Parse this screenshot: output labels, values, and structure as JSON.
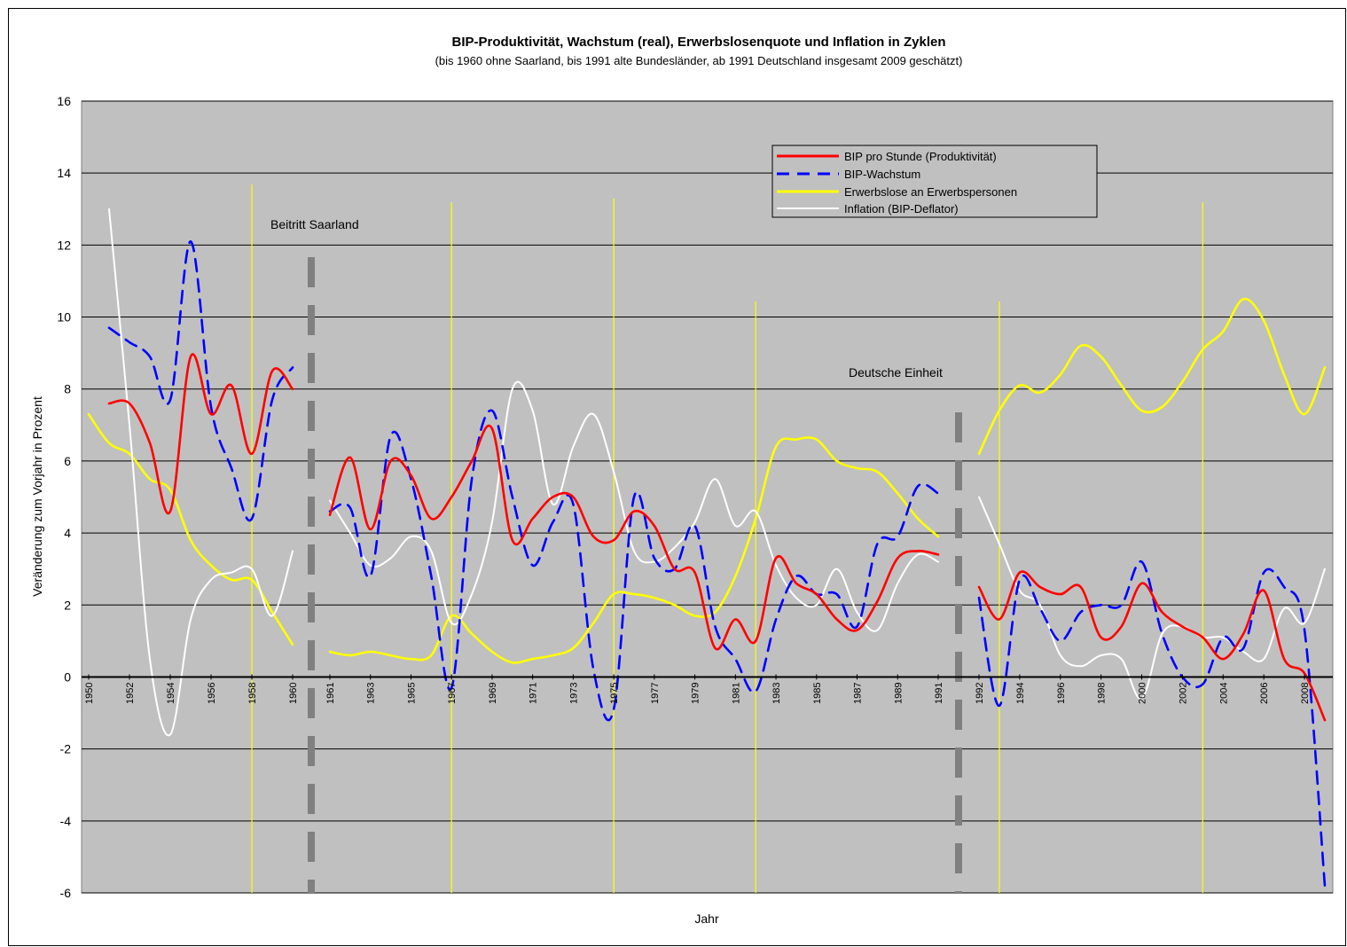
{
  "chart_data": {
    "type": "line",
    "title": "BIP-Produktivität, Wachstum (real), Erwerbslosenquote und Inflation in Zyklen",
    "subtitle": "(bis 1960 ohne Saarland, bis 1991 alte Bundesländer, ab 1991 Deutschland insgesamt 2009 geschätzt)",
    "xlabel": "Jahr",
    "ylabel": "Veränderung zum Vorjahr in Prozent",
    "ylim": [
      -6,
      16
    ],
    "y_ticks": [
      "-6",
      "-4",
      "-2",
      "0",
      "2",
      "4",
      "6",
      "8",
      "10",
      "12",
      "14",
      "16"
    ],
    "x_tick_labels": [
      "1950",
      "1952",
      "1954",
      "1956",
      "1958",
      "1960",
      "1961",
      "1963",
      "1965",
      "1967",
      "1969",
      "1971",
      "1973",
      "1975",
      "1977",
      "1979",
      "1981",
      "1983",
      "1985",
      "1987",
      "1989",
      "1991",
      "1992",
      "1994",
      "1996",
      "1998",
      "2000",
      "2002",
      "2004",
      "2006",
      "2008"
    ],
    "grid": "horizontal",
    "legend_position": "top-right",
    "annotations": [
      "Beitritt Saarland",
      "Deutsche Einheit"
    ],
    "colors": {
      "plot_background": "#c0c0c0",
      "productivity": "#ff0000",
      "growth": "#0000ff",
      "unemployment": "#ffff00",
      "inflation": "#ffffff",
      "cycle_lines": "#ffff00",
      "break_lines": "#808080"
    },
    "segments": [
      {
        "name": "1950-1960",
        "start_year": 1950,
        "end_year": 1960
      },
      {
        "name": "1961-1991",
        "start_year": 1961,
        "end_year": 1991
      },
      {
        "name": "1992-2009",
        "start_year": 1992,
        "end_year": 2009
      }
    ],
    "cycle_marks": [
      1958,
      1967,
      1975,
      1982,
      1993,
      2003
    ],
    "break_marks": [
      1960.5,
      1991.5
    ],
    "series": [
      {
        "name": "BIP pro Stunde (Produktivität)",
        "style": "solid",
        "points": [
          [
            1951,
            7.6
          ],
          [
            1952,
            7.6
          ],
          [
            1953,
            6.5
          ],
          [
            1954,
            4.6
          ],
          [
            1955,
            8.9
          ],
          [
            1956,
            7.3
          ],
          [
            1957,
            8.1
          ],
          [
            1958,
            6.2
          ],
          [
            1959,
            8.5
          ],
          [
            1960,
            8.0
          ],
          [
            1961,
            4.5
          ],
          [
            1962,
            6.1
          ],
          [
            1963,
            4.1
          ],
          [
            1964,
            6.0
          ],
          [
            1965,
            5.6
          ],
          [
            1966,
            4.4
          ],
          [
            1967,
            5.0
          ],
          [
            1968,
            6.0
          ],
          [
            1969,
            6.9
          ],
          [
            1970,
            3.8
          ],
          [
            1971,
            4.4
          ],
          [
            1972,
            5.0
          ],
          [
            1973,
            5.0
          ],
          [
            1974,
            3.9
          ],
          [
            1975,
            3.8
          ],
          [
            1976,
            4.6
          ],
          [
            1977,
            4.2
          ],
          [
            1978,
            3.0
          ],
          [
            1979,
            2.9
          ],
          [
            1980,
            0.8
          ],
          [
            1981,
            1.6
          ],
          [
            1982,
            1.0
          ],
          [
            1983,
            3.3
          ],
          [
            1984,
            2.6
          ],
          [
            1985,
            2.3
          ],
          [
            1986,
            1.6
          ],
          [
            1987,
            1.3
          ],
          [
            1988,
            2.1
          ],
          [
            1989,
            3.3
          ],
          [
            1990,
            3.5
          ],
          [
            1991,
            3.4
          ],
          [
            1992,
            2.5
          ],
          [
            1993,
            1.6
          ],
          [
            1994,
            2.9
          ],
          [
            1995,
            2.5
          ],
          [
            1996,
            2.3
          ],
          [
            1997,
            2.5
          ],
          [
            1998,
            1.1
          ],
          [
            1999,
            1.4
          ],
          [
            2000,
            2.6
          ],
          [
            2001,
            1.8
          ],
          [
            2002,
            1.4
          ],
          [
            2003,
            1.1
          ],
          [
            2004,
            0.5
          ],
          [
            2005,
            1.2
          ],
          [
            2006,
            2.4
          ],
          [
            2007,
            0.5
          ],
          [
            2008,
            0.1
          ],
          [
            2009,
            -1.2
          ]
        ]
      },
      {
        "name": "BIP-Wachstum",
        "style": "dashed",
        "points": [
          [
            1951,
            9.7
          ],
          [
            1952,
            9.3
          ],
          [
            1953,
            8.9
          ],
          [
            1954,
            7.7
          ],
          [
            1955,
            12.1
          ],
          [
            1956,
            7.5
          ],
          [
            1957,
            5.8
          ],
          [
            1958,
            4.4
          ],
          [
            1959,
            7.7
          ],
          [
            1960,
            8.6
          ],
          [
            1961,
            4.6
          ],
          [
            1962,
            4.7
          ],
          [
            1963,
            2.8
          ],
          [
            1964,
            6.7
          ],
          [
            1965,
            5.5
          ],
          [
            1966,
            2.8
          ],
          [
            1967,
            -0.3
          ],
          [
            1968,
            5.5
          ],
          [
            1969,
            7.4
          ],
          [
            1970,
            5.0
          ],
          [
            1971,
            3.1
          ],
          [
            1972,
            4.3
          ],
          [
            1973,
            4.8
          ],
          [
            1974,
            0.2
          ],
          [
            1975,
            -0.9
          ],
          [
            1976,
            5.0
          ],
          [
            1977,
            3.3
          ],
          [
            1978,
            3.0
          ],
          [
            1979,
            4.2
          ],
          [
            1980,
            1.4
          ],
          [
            1981,
            0.5
          ],
          [
            1982,
            -0.4
          ],
          [
            1983,
            1.6
          ],
          [
            1984,
            2.8
          ],
          [
            1985,
            2.3
          ],
          [
            1986,
            2.3
          ],
          [
            1987,
            1.4
          ],
          [
            1988,
            3.7
          ],
          [
            1989,
            3.9
          ],
          [
            1990,
            5.3
          ],
          [
            1991,
            5.1
          ],
          [
            1992,
            2.2
          ],
          [
            1993,
            -0.8
          ],
          [
            1994,
            2.7
          ],
          [
            1995,
            1.9
          ],
          [
            1996,
            1.0
          ],
          [
            1997,
            1.8
          ],
          [
            1998,
            2.0
          ],
          [
            1999,
            2.0
          ],
          [
            2000,
            3.2
          ],
          [
            2001,
            1.2
          ],
          [
            2002,
            0.0
          ],
          [
            2003,
            -0.2
          ],
          [
            2004,
            1.1
          ],
          [
            2005,
            0.8
          ],
          [
            2006,
            2.9
          ],
          [
            2007,
            2.5
          ],
          [
            2008,
            1.3
          ],
          [
            2009,
            -5.8
          ]
        ]
      },
      {
        "name": "Erwerbslose an Erwerbspersonen",
        "style": "solid",
        "points": [
          [
            1950,
            7.3
          ],
          [
            1951,
            6.5
          ],
          [
            1952,
            6.2
          ],
          [
            1953,
            5.5
          ],
          [
            1954,
            5.2
          ],
          [
            1955,
            3.8
          ],
          [
            1956,
            3.1
          ],
          [
            1957,
            2.7
          ],
          [
            1958,
            2.7
          ],
          [
            1959,
            1.8
          ],
          [
            1960,
            0.9
          ],
          [
            1961,
            0.7
          ],
          [
            1962,
            0.6
          ],
          [
            1963,
            0.7
          ],
          [
            1964,
            0.6
          ],
          [
            1965,
            0.5
          ],
          [
            1966,
            0.6
          ],
          [
            1967,
            1.7
          ],
          [
            1968,
            1.2
          ],
          [
            1969,
            0.7
          ],
          [
            1970,
            0.4
          ],
          [
            1971,
            0.5
          ],
          [
            1972,
            0.6
          ],
          [
            1973,
            0.8
          ],
          [
            1974,
            1.5
          ],
          [
            1975,
            2.3
          ],
          [
            1976,
            2.3
          ],
          [
            1977,
            2.2
          ],
          [
            1978,
            2.0
          ],
          [
            1979,
            1.7
          ],
          [
            1980,
            1.8
          ],
          [
            1981,
            2.8
          ],
          [
            1982,
            4.4
          ],
          [
            1983,
            6.4
          ],
          [
            1984,
            6.6
          ],
          [
            1985,
            6.6
          ],
          [
            1986,
            6.0
          ],
          [
            1987,
            5.8
          ],
          [
            1988,
            5.7
          ],
          [
            1989,
            5.1
          ],
          [
            1990,
            4.4
          ],
          [
            1991,
            3.9
          ],
          [
            1992,
            6.2
          ],
          [
            1993,
            7.4
          ],
          [
            1994,
            8.1
          ],
          [
            1995,
            7.9
          ],
          [
            1996,
            8.4
          ],
          [
            1997,
            9.2
          ],
          [
            1998,
            8.9
          ],
          [
            1999,
            8.1
          ],
          [
            2000,
            7.4
          ],
          [
            2001,
            7.5
          ],
          [
            2002,
            8.2
          ],
          [
            2003,
            9.1
          ],
          [
            2004,
            9.6
          ],
          [
            2005,
            10.5
          ],
          [
            2006,
            9.9
          ],
          [
            2007,
            8.4
          ],
          [
            2008,
            7.3
          ],
          [
            2009,
            8.6
          ]
        ]
      },
      {
        "name": "Inflation (BIP-Deflator)",
        "style": "solid",
        "points": [
          [
            1951,
            13.0
          ],
          [
            1952,
            7.0
          ],
          [
            1953,
            0.5
          ],
          [
            1954,
            -1.6
          ],
          [
            1955,
            1.6
          ],
          [
            1956,
            2.7
          ],
          [
            1957,
            2.9
          ],
          [
            1958,
            3.0
          ],
          [
            1959,
            1.7
          ],
          [
            1960,
            3.5
          ],
          [
            1961,
            4.9
          ],
          [
            1962,
            4.0
          ],
          [
            1963,
            3.1
          ],
          [
            1964,
            3.3
          ],
          [
            1965,
            3.9
          ],
          [
            1966,
            3.5
          ],
          [
            1967,
            1.5
          ],
          [
            1968,
            2.3
          ],
          [
            1969,
            4.3
          ],
          [
            1970,
            8.0
          ],
          [
            1971,
            7.4
          ],
          [
            1972,
            4.8
          ],
          [
            1973,
            6.4
          ],
          [
            1974,
            7.3
          ],
          [
            1975,
            5.7
          ],
          [
            1976,
            3.5
          ],
          [
            1977,
            3.2
          ],
          [
            1978,
            3.6
          ],
          [
            1979,
            4.3
          ],
          [
            1980,
            5.5
          ],
          [
            1981,
            4.2
          ],
          [
            1982,
            4.6
          ],
          [
            1983,
            3.1
          ],
          [
            1984,
            2.2
          ],
          [
            1985,
            2.0
          ],
          [
            1986,
            3.0
          ],
          [
            1987,
            1.8
          ],
          [
            1988,
            1.3
          ],
          [
            1989,
            2.6
          ],
          [
            1990,
            3.4
          ],
          [
            1991,
            3.2
          ],
          [
            1992,
            5.0
          ],
          [
            1993,
            3.7
          ],
          [
            1994,
            2.4
          ],
          [
            1995,
            2.0
          ],
          [
            1996,
            0.6
          ],
          [
            1997,
            0.3
          ],
          [
            1998,
            0.6
          ],
          [
            1999,
            0.5
          ],
          [
            2000,
            -0.6
          ],
          [
            2001,
            1.2
          ],
          [
            2002,
            1.4
          ],
          [
            2003,
            1.1
          ],
          [
            2004,
            1.1
          ],
          [
            2005,
            0.7
          ],
          [
            2006,
            0.5
          ],
          [
            2007,
            1.9
          ],
          [
            2008,
            1.5
          ],
          [
            2009,
            3.0
          ]
        ]
      }
    ]
  }
}
